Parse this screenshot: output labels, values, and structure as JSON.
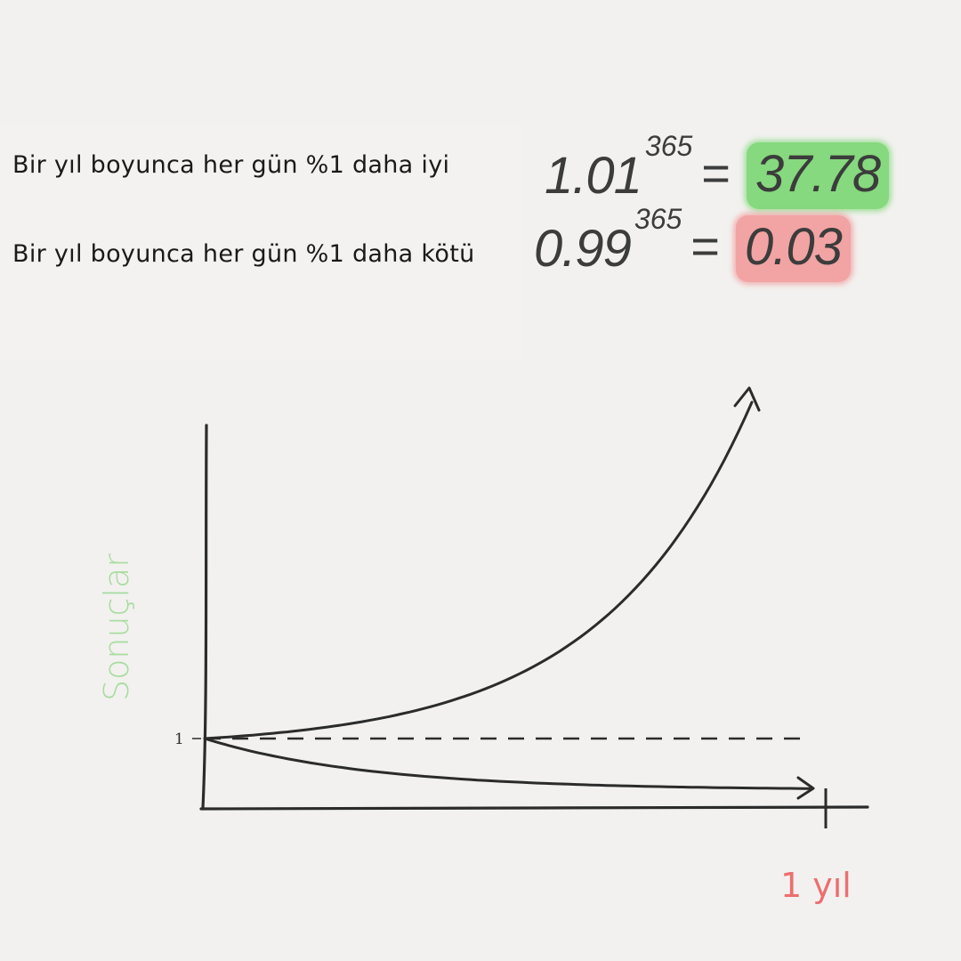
{
  "rows": [
    {
      "label": "Bir yıl boyunca her gün %1 daha iyi",
      "base": "1.01",
      "exponent": "365",
      "equals": "=",
      "result": "37.78",
      "highlight": "#86d97e"
    },
    {
      "label": "Bir yıl boyunca her gün %1 daha kötü",
      "base": "0.99",
      "exponent": "365",
      "equals": "=",
      "result": "0.03",
      "highlight": "#f2a3a3"
    }
  ],
  "chart_data": {
    "type": "line",
    "ylabel": "Sonuçlar",
    "xlabel": "1 yıl",
    "y_tick_label": "1",
    "x": [
      0,
      36.5,
      73,
      109.5,
      146,
      182.5,
      219,
      255.5,
      292,
      328.5,
      365
    ],
    "series": [
      {
        "values": [
          1.0,
          1.44,
          2.07,
          2.97,
          4.28,
          6.16,
          8.86,
          12.75,
          18.36,
          26.42,
          37.78
        ]
      },
      {
        "values": [
          1.0,
          0.69,
          0.48,
          0.33,
          0.23,
          0.16,
          0.11,
          0.08,
          0.05,
          0.04,
          0.03
        ]
      }
    ],
    "reference_line": {
      "y": 1,
      "style": "dashed"
    },
    "xlim": [
      0,
      365
    ],
    "grid": false,
    "colors": {
      "ylabel": "#a8dca0",
      "xlabel": "#ec6f6f",
      "lines": "#2b2b2b"
    }
  }
}
